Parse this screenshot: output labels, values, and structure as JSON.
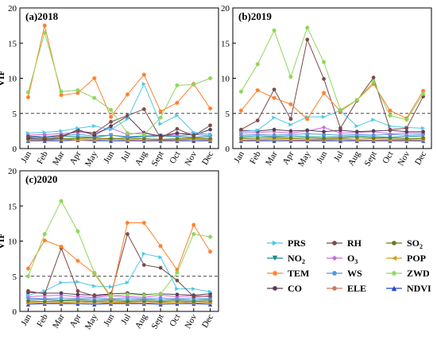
{
  "figure": {
    "ylabel": "VIF",
    "months": [
      "Jan",
      "Feb",
      "Mar",
      "Apr",
      "May",
      "Jun",
      "Jul",
      "Aug",
      "Sept",
      "Oct",
      "Nov",
      "Dec"
    ]
  },
  "legend": {
    "items": [
      {
        "key": "PRS",
        "label": "PRS",
        "sub": ""
      },
      {
        "key": "RH",
        "label": "RH",
        "sub": ""
      },
      {
        "key": "SO2",
        "label": "SO",
        "sub": "2"
      },
      {
        "key": "NO2",
        "label": "NO",
        "sub": "2"
      },
      {
        "key": "O3",
        "label": "O",
        "sub": "3"
      },
      {
        "key": "POP",
        "label": "POP",
        "sub": ""
      },
      {
        "key": "TEM",
        "label": "TEM",
        "sub": ""
      },
      {
        "key": "WS",
        "label": "WS",
        "sub": ""
      },
      {
        "key": "ZWD",
        "label": "ZWD",
        "sub": ""
      },
      {
        "key": "CO",
        "label": "CO",
        "sub": ""
      },
      {
        "key": "ELE",
        "label": "ELE",
        "sub": ""
      },
      {
        "key": "NDVI",
        "label": "NDVI",
        "sub": ""
      }
    ]
  },
  "styles": {
    "PRS": {
      "color": "#4ec8e8",
      "marker": "tri-right"
    },
    "RH": {
      "color": "#7a4a4a",
      "marker": "circle"
    },
    "SO2": {
      "color": "#6b7a1a",
      "marker": "circle"
    },
    "NO2": {
      "color": "#1a8a8a",
      "marker": "tri-down"
    },
    "O3": {
      "color": "#cc66dd",
      "marker": "diamond"
    },
    "POP": {
      "color": "#d4a017",
      "marker": "tri-left"
    },
    "TEM": {
      "color": "#ff7f2a",
      "marker": "star"
    },
    "WS": {
      "color": "#5599dd",
      "marker": "hexagon"
    },
    "ZWD": {
      "color": "#8ed65a",
      "marker": "star"
    },
    "CO": {
      "color": "#5a3a5a",
      "marker": "circle"
    },
    "ELE": {
      "color": "#c08060",
      "marker": "circle"
    },
    "NDVI": {
      "color": "#2244cc",
      "marker": "tri-up"
    }
  },
  "chart_data": [
    {
      "type": "line",
      "title": "(a)2018",
      "ylabel": "VIF",
      "ylim": [
        0,
        20
      ],
      "yticks": [
        0,
        5,
        10,
        15,
        20
      ],
      "threshold": 5,
      "categories": [
        "Jan",
        "Feb",
        "Mar",
        "Apr",
        "May",
        "Jun",
        "Jul",
        "Aug",
        "Sept",
        "Oct",
        "Nov",
        "Dec"
      ],
      "series": [
        {
          "name": "ZWD",
          "values": [
            8.0,
            16.5,
            8.1,
            8.3,
            7.2,
            5.5,
            2.2,
            2.0,
            4.4,
            9.0,
            9.1,
            10.0
          ]
        },
        {
          "name": "TEM",
          "values": [
            7.3,
            17.5,
            7.6,
            7.9,
            10.0,
            4.5,
            7.7,
            10.5,
            5.3,
            6.5,
            9.2,
            5.7
          ]
        },
        {
          "name": "PRS",
          "values": [
            2.2,
            2.3,
            2.5,
            2.9,
            3.2,
            2.7,
            4.2,
            9.2,
            3.5,
            4.7,
            2.3,
            2.0
          ]
        },
        {
          "name": "RH",
          "values": [
            1.7,
            1.5,
            1.8,
            2.5,
            2.2,
            3.8,
            4.7,
            5.6,
            1.5,
            2.8,
            1.8,
            3.3
          ]
        },
        {
          "name": "CO",
          "values": [
            1.5,
            1.3,
            1.6,
            2.7,
            1.9,
            3.2,
            4.6,
            2.2,
            1.8,
            2.2,
            1.9,
            2.7
          ]
        },
        {
          "name": "O3",
          "values": [
            1.9,
            2.0,
            2.1,
            2.3,
            2.2,
            2.9,
            2.0,
            2.3,
            1.7,
            2.1,
            2.2,
            2.0
          ]
        },
        {
          "name": "WS",
          "values": [
            1.8,
            1.7,
            1.9,
            2.0,
            1.8,
            1.9,
            1.7,
            1.8,
            1.9,
            1.8,
            2.0,
            1.8
          ]
        },
        {
          "name": "NO2",
          "values": [
            1.6,
            1.7,
            1.8,
            1.7,
            1.6,
            1.9,
            1.6,
            1.7,
            1.8,
            1.7,
            1.6,
            1.7
          ]
        },
        {
          "name": "SO2",
          "values": [
            1.4,
            1.3,
            1.4,
            1.5,
            1.5,
            1.4,
            1.5,
            1.4,
            1.3,
            1.4,
            1.5,
            1.4
          ]
        },
        {
          "name": "POP",
          "values": [
            1.3,
            1.4,
            1.3,
            1.4,
            1.3,
            1.5,
            1.3,
            1.4,
            1.3,
            1.3,
            1.4,
            1.3
          ]
        },
        {
          "name": "ELE",
          "values": [
            1.2,
            1.2,
            1.3,
            1.2,
            1.2,
            1.3,
            1.2,
            1.2,
            1.2,
            1.2,
            1.3,
            1.2
          ]
        },
        {
          "name": "NDVI",
          "values": [
            1.1,
            1.1,
            1.1,
            1.2,
            1.1,
            1.1,
            1.1,
            1.1,
            1.1,
            1.1,
            1.1,
            1.1
          ]
        }
      ]
    },
    {
      "type": "line",
      "title": "(b)2019",
      "ylabel": "",
      "ylim": [
        0,
        20
      ],
      "yticks": [
        0,
        5,
        10,
        15,
        20
      ],
      "threshold": 5,
      "categories": [
        "Jan",
        "Feb",
        "Mar",
        "Apr",
        "May",
        "Jun",
        "Jul",
        "Aug",
        "Sept",
        "Oct",
        "Nov",
        "Dec"
      ],
      "series": [
        {
          "name": "ZWD",
          "values": [
            8.1,
            12.0,
            16.8,
            10.2,
            17.2,
            12.3,
            5.5,
            6.9,
            9.5,
            4.7,
            4.1,
            7.8
          ]
        },
        {
          "name": "TEM",
          "values": [
            5.4,
            8.3,
            7.2,
            6.3,
            4.2,
            7.9,
            5.3,
            6.9,
            9.2,
            5.4,
            4.3,
            8.2
          ]
        },
        {
          "name": "RH",
          "values": [
            2.7,
            4.0,
            8.4,
            4.2,
            15.5,
            9.9,
            2.9,
            6.8,
            10.1,
            2.7,
            2.9,
            7.4
          ]
        },
        {
          "name": "PRS",
          "values": [
            2.4,
            2.6,
            4.4,
            3.4,
            4.5,
            4.5,
            5.4,
            3.2,
            4.1,
            3.2,
            3.0,
            2.9
          ]
        },
        {
          "name": "CO",
          "values": [
            2.6,
            2.5,
            2.7,
            2.5,
            2.6,
            2.4,
            2.6,
            2.4,
            2.5,
            2.6,
            2.4,
            2.4
          ]
        },
        {
          "name": "O3",
          "values": [
            2.2,
            2.3,
            2.4,
            2.2,
            2.5,
            3.0,
            2.2,
            2.3,
            2.4,
            2.1,
            2.2,
            2.2
          ]
        },
        {
          "name": "WS",
          "values": [
            1.9,
            2.0,
            1.9,
            2.0,
            2.1,
            2.0,
            1.9,
            2.0,
            1.9,
            2.0,
            1.9,
            2.0
          ]
        },
        {
          "name": "NO2",
          "values": [
            1.7,
            1.8,
            1.7,
            1.8,
            1.7,
            1.6,
            1.7,
            1.8,
            1.7,
            1.6,
            1.7,
            1.8
          ]
        },
        {
          "name": "SO2",
          "values": [
            1.5,
            1.5,
            1.6,
            1.5,
            1.5,
            1.4,
            1.5,
            1.6,
            1.5,
            1.5,
            1.4,
            1.5
          ]
        },
        {
          "name": "POP",
          "values": [
            1.4,
            1.3,
            1.4,
            1.4,
            1.3,
            1.3,
            1.4,
            1.3,
            1.4,
            1.3,
            1.3,
            1.4
          ]
        },
        {
          "name": "ELE",
          "values": [
            1.2,
            1.2,
            1.3,
            1.2,
            1.2,
            1.2,
            1.3,
            1.2,
            1.2,
            1.2,
            1.2,
            1.2
          ]
        },
        {
          "name": "NDVI",
          "values": [
            1.1,
            1.1,
            1.1,
            1.1,
            1.1,
            1.1,
            1.1,
            1.1,
            1.1,
            1.1,
            1.1,
            1.1
          ]
        }
      ]
    },
    {
      "type": "line",
      "title": "(c)2020",
      "ylabel": "VIF",
      "ylim": [
        0,
        20
      ],
      "yticks": [
        0,
        5,
        10,
        15,
        20
      ],
      "threshold": 5,
      "categories": [
        "Jan",
        "Feb",
        "Mar",
        "Apr",
        "May",
        "Jun",
        "Jul",
        "Aug",
        "Sept",
        "Oct",
        "Nov",
        "Dec"
      ],
      "series": [
        {
          "name": "ZWD",
          "values": [
            5.0,
            11.0,
            15.7,
            11.4,
            5.5,
            2.2,
            2.4,
            2.3,
            2.5,
            5.5,
            11.0,
            10.6
          ]
        },
        {
          "name": "TEM",
          "values": [
            6.1,
            10.1,
            9.2,
            7.2,
            5.4,
            2.0,
            12.6,
            12.6,
            9.3,
            5.9,
            12.3,
            8.5
          ]
        },
        {
          "name": "RH",
          "values": [
            2.9,
            2.5,
            9.0,
            2.9,
            2.2,
            2.4,
            11.0,
            6.6,
            6.2,
            4.4,
            2.1,
            2.2
          ]
        },
        {
          "name": "PRS",
          "values": [
            2.3,
            2.9,
            4.1,
            4.2,
            3.6,
            3.5,
            4.1,
            8.2,
            7.7,
            3.2,
            3.2,
            2.8
          ]
        },
        {
          "name": "CO",
          "values": [
            2.7,
            2.6,
            2.6,
            2.4,
            2.3,
            2.5,
            2.6,
            2.4,
            2.5,
            2.4,
            2.3,
            2.5
          ]
        },
        {
          "name": "O3",
          "values": [
            2.1,
            2.2,
            2.3,
            2.1,
            2.0,
            2.2,
            2.1,
            2.0,
            2.3,
            2.1,
            2.2,
            2.1
          ]
        },
        {
          "name": "WS",
          "values": [
            1.9,
            1.8,
            1.9,
            1.8,
            1.9,
            1.8,
            1.9,
            1.8,
            1.9,
            1.8,
            1.9,
            1.8
          ]
        },
        {
          "name": "NO2",
          "values": [
            1.7,
            1.7,
            1.6,
            1.7,
            1.6,
            1.7,
            1.6,
            1.7,
            1.6,
            1.7,
            1.6,
            1.7
          ]
        },
        {
          "name": "SO2",
          "values": [
            1.5,
            1.4,
            1.5,
            1.5,
            1.4,
            1.5,
            1.4,
            1.5,
            1.4,
            1.5,
            1.4,
            1.5
          ]
        },
        {
          "name": "POP",
          "values": [
            1.3,
            1.4,
            1.3,
            1.3,
            1.4,
            1.3,
            1.3,
            1.4,
            1.3,
            1.3,
            1.4,
            1.3
          ]
        },
        {
          "name": "ELE",
          "values": [
            1.2,
            1.2,
            1.2,
            1.3,
            1.2,
            1.2,
            1.2,
            1.2,
            1.2,
            1.3,
            1.2,
            1.2
          ]
        },
        {
          "name": "NDVI",
          "values": [
            1.0,
            1.1,
            1.1,
            1.1,
            1.0,
            1.1,
            1.1,
            1.1,
            1.0,
            1.1,
            1.1,
            1.0
          ]
        }
      ]
    }
  ]
}
